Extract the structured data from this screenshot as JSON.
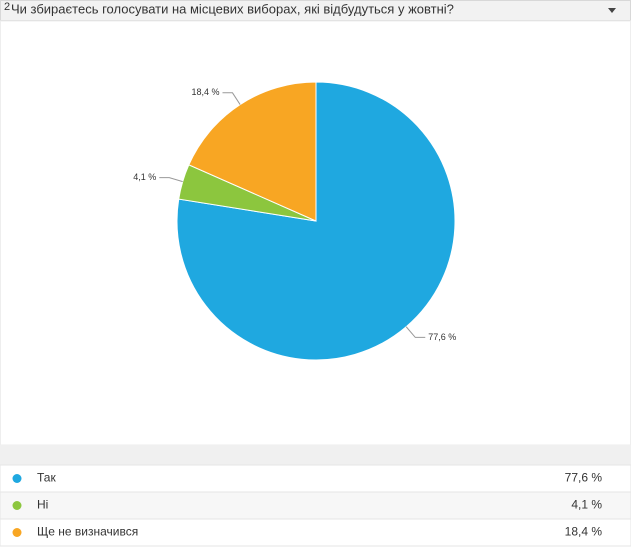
{
  "chart_data": {
    "type": "pie",
    "question_number": "2",
    "title": "Чи збираєтесь голосувати на місцевих виборах, які відбудуться у жовтні?",
    "categories": [
      "Так",
      "Ні",
      "Ще не визначився"
    ],
    "values": [
      77.6,
      4.1,
      18.4
    ],
    "value_labels": [
      "77,6 %",
      "4,1 %",
      "18,4 %"
    ],
    "colors": [
      "#1fa8e0",
      "#8cc63e",
      "#f8a623"
    ]
  }
}
